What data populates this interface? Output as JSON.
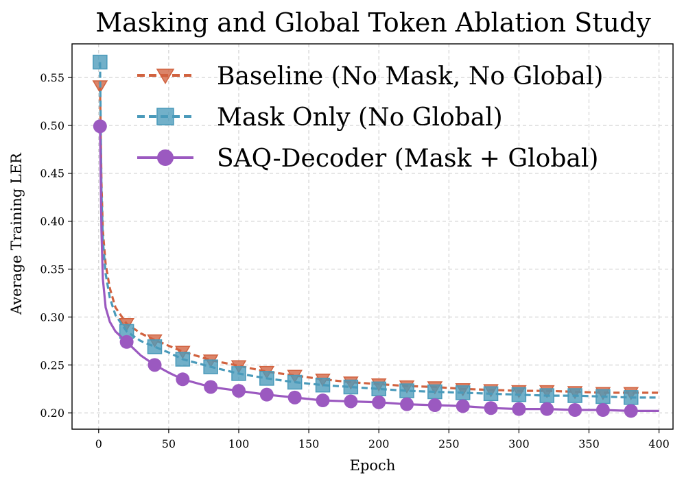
{
  "chart_data": {
    "type": "line",
    "title": "Masking and Global Token Ablation Study",
    "xlabel": "Epoch",
    "ylabel": "Average Training LER",
    "xlim": [
      -19,
      410
    ],
    "ylim": [
      0.183,
      0.585
    ],
    "xticks": [
      0,
      50,
      100,
      150,
      200,
      250,
      300,
      350,
      400
    ],
    "yticks": [
      0.2,
      0.25,
      0.3,
      0.35,
      0.4,
      0.45,
      0.5,
      0.55
    ],
    "xtick_labels": [
      "0",
      "50",
      "100",
      "150",
      "200",
      "250",
      "300",
      "350",
      "400"
    ],
    "ytick_labels": [
      "0.20",
      "0.25",
      "0.30",
      "0.35",
      "0.40",
      "0.45",
      "0.50",
      "0.55"
    ],
    "grid": true,
    "legend_position": "top-right",
    "series": [
      {
        "name": "Baseline (No Mask, No Global)",
        "color": "#d1623f",
        "line_style": "dashed",
        "marker": "triangle-down",
        "x": [
          1,
          2,
          3,
          5,
          8,
          12,
          20,
          30,
          40,
          50,
          60,
          80,
          100,
          120,
          140,
          160,
          180,
          200,
          220,
          240,
          260,
          280,
          300,
          320,
          340,
          360,
          380,
          400
        ],
        "values": [
          0.541,
          0.44,
          0.39,
          0.355,
          0.33,
          0.31,
          0.293,
          0.283,
          0.276,
          0.27,
          0.264,
          0.255,
          0.249,
          0.243,
          0.239,
          0.235,
          0.232,
          0.23,
          0.228,
          0.227,
          0.225,
          0.224,
          0.223,
          0.223,
          0.222,
          0.221,
          0.221,
          0.221
        ],
        "marker_x": [
          1,
          20,
          40,
          60,
          80,
          100,
          120,
          140,
          160,
          180,
          200,
          220,
          240,
          260,
          280,
          300,
          320,
          340,
          360,
          380
        ]
      },
      {
        "name": "Mask Only (No Global)",
        "color": "#4a9aba",
        "line_style": "dashed",
        "marker": "square",
        "x": [
          1,
          2,
          3,
          5,
          8,
          12,
          20,
          30,
          40,
          50,
          60,
          80,
          100,
          120,
          140,
          160,
          180,
          200,
          220,
          240,
          260,
          280,
          300,
          320,
          340,
          360,
          380,
          400
        ],
        "values": [
          0.566,
          0.43,
          0.38,
          0.345,
          0.32,
          0.302,
          0.285,
          0.275,
          0.269,
          0.263,
          0.256,
          0.248,
          0.241,
          0.236,
          0.232,
          0.229,
          0.227,
          0.225,
          0.223,
          0.222,
          0.221,
          0.22,
          0.219,
          0.218,
          0.218,
          0.217,
          0.216,
          0.216
        ],
        "marker_x": [
          1,
          20,
          40,
          60,
          80,
          100,
          120,
          140,
          160,
          180,
          200,
          220,
          240,
          260,
          280,
          300,
          320,
          340,
          360,
          380
        ]
      },
      {
        "name": "SAQ-Decoder (Mask + Global)",
        "color": "#9b59c0",
        "line_style": "solid",
        "marker": "circle",
        "x": [
          1,
          2,
          3,
          5,
          8,
          12,
          20,
          30,
          40,
          50,
          60,
          80,
          100,
          120,
          140,
          160,
          180,
          200,
          220,
          240,
          260,
          280,
          300,
          320,
          340,
          360,
          380,
          400
        ],
        "values": [
          0.499,
          0.39,
          0.34,
          0.31,
          0.295,
          0.285,
          0.274,
          0.26,
          0.25,
          0.242,
          0.235,
          0.227,
          0.223,
          0.219,
          0.216,
          0.213,
          0.212,
          0.211,
          0.209,
          0.208,
          0.207,
          0.205,
          0.204,
          0.204,
          0.203,
          0.203,
          0.202,
          0.202
        ],
        "marker_x": [
          1,
          20,
          40,
          60,
          80,
          100,
          120,
          140,
          160,
          180,
          200,
          220,
          240,
          260,
          280,
          300,
          320,
          340,
          360,
          380
        ]
      }
    ]
  }
}
